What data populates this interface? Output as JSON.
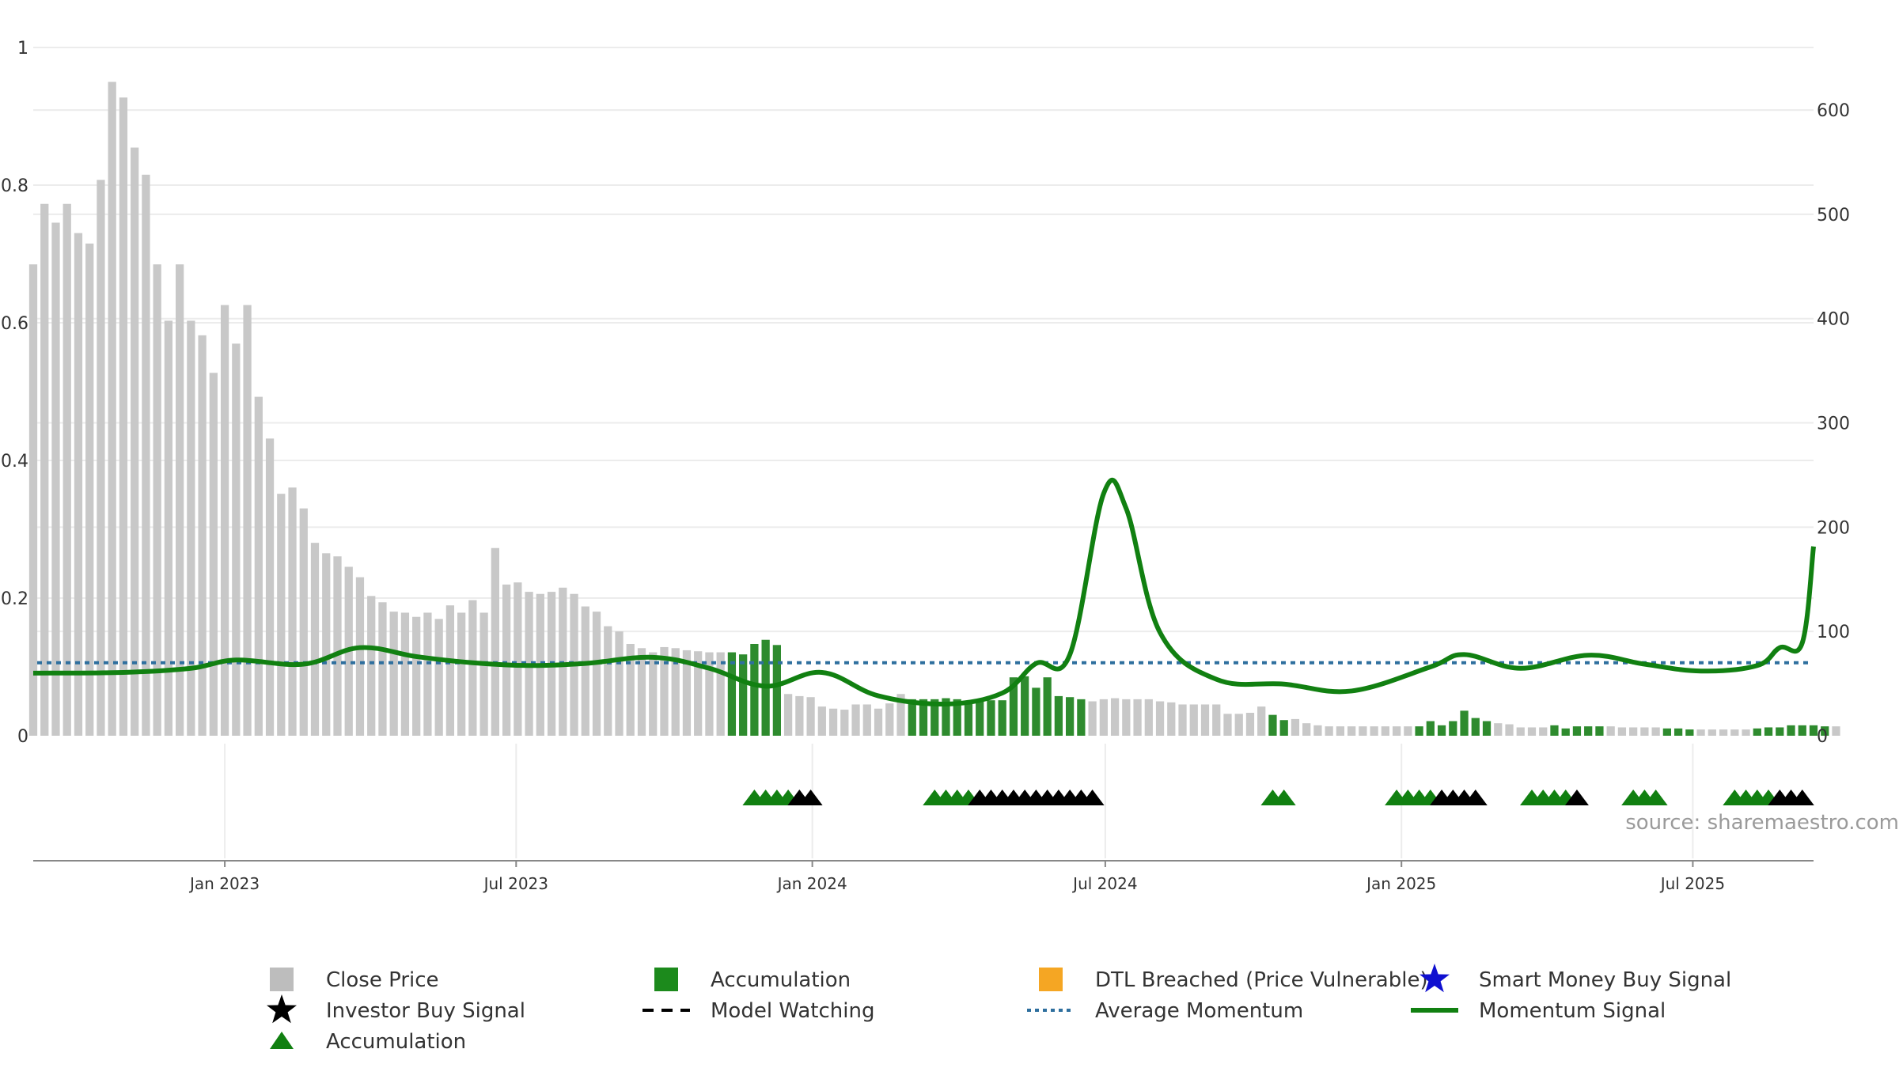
{
  "chart_data": {
    "type": "bar",
    "title": "",
    "xlabel": "",
    "ylabel": "",
    "source": "source: sharemaestro.com",
    "x_range": [
      "2022-09-04",
      "2025-09-14"
    ],
    "x_ticks": [
      {
        "date": "2023-01-01",
        "label": "Jan 2023"
      },
      {
        "date": "2023-07-01",
        "label": "Jul 2023"
      },
      {
        "date": "2024-01-01",
        "label": "Jan 2024"
      },
      {
        "date": "2024-07-01",
        "label": "Jul 2024"
      },
      {
        "date": "2025-01-01",
        "label": "Jan 2025"
      },
      {
        "date": "2025-07-01",
        "label": "Jul 2025"
      }
    ],
    "y_left": {
      "ylim": [
        0,
        1.0
      ],
      "ticks": [
        0,
        0.2,
        0.4,
        0.6,
        0.8,
        1
      ],
      "labels": [
        "0",
        "0.2",
        "0.4",
        "0.6",
        "0.8",
        "1"
      ]
    },
    "y_right": {
      "ylim": [
        0,
        660
      ],
      "ticks": [
        0,
        100,
        200,
        300,
        400,
        500,
        600
      ],
      "labels": [
        "0",
        "100",
        "200",
        "300",
        "400",
        "500",
        "600"
      ]
    },
    "colors": {
      "close": "#c8c8c8",
      "accumulation": "#2e8b2e",
      "momentum": "#118011",
      "average": "#2e6f9e",
      "triangle_green": "#118011",
      "triangle_black": "#000000",
      "dtl": "#f5a623",
      "smart_money": "#1010d0",
      "grid": "#ececec"
    },
    "series": [
      {
        "name": "Close Price",
        "axis": "right",
        "start_date": "2022-09-04",
        "interval_days": 7,
        "values": [
          452,
          510,
          492,
          510,
          482,
          472,
          533,
          627,
          612,
          564,
          538,
          452,
          398,
          452,
          398,
          384,
          348,
          413,
          376,
          413,
          325,
          285,
          232,
          238,
          218,
          185,
          175,
          172,
          162,
          152,
          134,
          128,
          119,
          118,
          114,
          118,
          112,
          125,
          118,
          130,
          118,
          180,
          145,
          147,
          138,
          136,
          138,
          142,
          136,
          124,
          119,
          105,
          100,
          88,
          84,
          80,
          85,
          84,
          82,
          81,
          80,
          80
        ]
      },
      {
        "name": "Accumulation",
        "axis": "right",
        "start_date": "2022-09-04",
        "interval_days": 7,
        "offset": 62,
        "values": [
          80,
          78,
          88,
          92,
          87
        ]
      },
      {
        "name": "Close Price",
        "axis": "right",
        "start_date": "2022-09-04",
        "interval_days": 7,
        "offset": 67,
        "values": [
          40,
          38,
          37,
          28,
          26,
          25,
          30,
          30,
          26,
          31,
          40
        ]
      },
      {
        "name": "Accumulation",
        "axis": "right",
        "start_date": "2022-09-04",
        "interval_days": 7,
        "offset": 78,
        "values": [
          35,
          35,
          35,
          36,
          35,
          33,
          33,
          34,
          34,
          56,
          57,
          46,
          56,
          38,
          37,
          35
        ]
      },
      {
        "name": "Close Price",
        "axis": "right",
        "start_date": "2022-09-04",
        "interval_days": 7,
        "offset": 94,
        "values": [
          33,
          35,
          36,
          35,
          35,
          35,
          33,
          32,
          30,
          30,
          30,
          30,
          21,
          21,
          22,
          28
        ]
      },
      {
        "name": "Accumulation",
        "axis": "right",
        "start_date": "2022-09-04",
        "interval_days": 7,
        "offset": 110,
        "values": [
          20,
          15
        ]
      },
      {
        "name": "Close Price",
        "axis": "right",
        "start_date": "2022-09-04",
        "interval_days": 7,
        "offset": 112,
        "values": [
          16,
          12,
          10,
          9,
          9,
          9,
          9,
          9,
          9,
          9,
          9
        ]
      },
      {
        "name": "Accumulation",
        "axis": "right",
        "start_date": "2022-09-04",
        "interval_days": 7,
        "offset": 123,
        "values": [
          9,
          14,
          10,
          14,
          24,
          17,
          14
        ]
      },
      {
        "name": "Close Price",
        "axis": "right",
        "start_date": "2022-09-04",
        "interval_days": 7,
        "offset": 130,
        "values": [
          12,
          11,
          8,
          8,
          8
        ]
      },
      {
        "name": "Accumulation",
        "axis": "right",
        "start_date": "2022-09-04",
        "interval_days": 7,
        "offset": 135,
        "values": [
          10,
          7,
          9,
          9,
          9
        ]
      },
      {
        "name": "Close Price",
        "axis": "right",
        "start_date": "2022-09-04",
        "interval_days": 7,
        "offset": 140,
        "values": [
          9,
          8,
          8,
          8,
          8
        ]
      },
      {
        "name": "Accumulation",
        "axis": "right",
        "start_date": "2022-09-04",
        "interval_days": 7,
        "offset": 145,
        "values": [
          7,
          7,
          6
        ]
      },
      {
        "name": "Close Price",
        "axis": "right",
        "start_date": "2022-09-04",
        "interval_days": 7,
        "offset": 148,
        "values": [
          6,
          6,
          6,
          6,
          6
        ]
      },
      {
        "name": "Accumulation",
        "axis": "right",
        "start_date": "2022-09-04",
        "interval_days": 7,
        "offset": 153,
        "values": [
          7,
          8,
          8,
          10,
          10,
          10,
          9
        ]
      },
      {
        "name": "Close Price",
        "axis": "right",
        "start_date": "2022-09-04",
        "interval_days": 7,
        "offset": 160,
        "values": [
          9
        ]
      },
      {
        "name": "Momentum Signal",
        "axis": "left",
        "type": "line",
        "points": [
          [
            "2022-09-04",
            0.091
          ],
          [
            "2022-10-30",
            0.092
          ],
          [
            "2022-12-11",
            0.098
          ],
          [
            "2023-01-08",
            0.11
          ],
          [
            "2023-02-19",
            0.104
          ],
          [
            "2023-03-26",
            0.128
          ],
          [
            "2023-04-30",
            0.115
          ],
          [
            "2023-06-04",
            0.106
          ],
          [
            "2023-07-09",
            0.102
          ],
          [
            "2023-08-13",
            0.105
          ],
          [
            "2023-09-24",
            0.114
          ],
          [
            "2023-10-29",
            0.098
          ],
          [
            "2023-12-03",
            0.072
          ],
          [
            "2024-01-07",
            0.092
          ],
          [
            "2024-02-11",
            0.058
          ],
          [
            "2024-03-24",
            0.046
          ],
          [
            "2024-04-28",
            0.062
          ],
          [
            "2024-05-19",
            0.105
          ],
          [
            "2024-06-09",
            0.118
          ],
          [
            "2024-06-30",
            0.352
          ],
          [
            "2024-07-14",
            0.33
          ],
          [
            "2024-08-04",
            0.15
          ],
          [
            "2024-09-08",
            0.082
          ],
          [
            "2024-10-20",
            0.075
          ],
          [
            "2024-12-01",
            0.065
          ],
          [
            "2025-01-19",
            0.1
          ],
          [
            "2025-02-09",
            0.118
          ],
          [
            "2025-03-16",
            0.098
          ],
          [
            "2025-04-27",
            0.117
          ],
          [
            "2025-06-01",
            0.104
          ],
          [
            "2025-07-06",
            0.094
          ],
          [
            "2025-08-10",
            0.102
          ],
          [
            "2025-08-24",
            0.128
          ],
          [
            "2025-09-07",
            0.135
          ],
          [
            "2025-09-14",
            0.275
          ]
        ]
      },
      {
        "name": "Average Momentum",
        "axis": "left",
        "type": "hline",
        "value": 0.106
      }
    ],
    "markers": {
      "accumulation_triangles": [
        "2023-11-26",
        "2023-12-03",
        "2023-12-10",
        "2023-12-17",
        "2024-03-17",
        "2024-03-24",
        "2024-03-31",
        "2024-04-07",
        "2024-10-13",
        "2024-10-20",
        "2024-12-29",
        "2025-01-05",
        "2025-01-12",
        "2025-01-19",
        "2025-03-23",
        "2025-03-30",
        "2025-04-06",
        "2025-04-13",
        "2025-05-25",
        "2025-06-01",
        "2025-06-08",
        "2025-07-27",
        "2025-08-03",
        "2025-08-10",
        "2025-08-17"
      ],
      "investor_buy_triangles": [
        "2023-12-24",
        "2023-12-31",
        "2024-04-14",
        "2024-04-21",
        "2024-04-28",
        "2024-05-05",
        "2024-05-12",
        "2024-05-19",
        "2024-05-26",
        "2024-06-02",
        "2024-06-09",
        "2024-06-16",
        "2024-06-23",
        "2025-01-26",
        "2025-02-02",
        "2025-02-09",
        "2025-02-16",
        "2025-04-20",
        "2025-08-24",
        "2025-08-31",
        "2025-09-07"
      ]
    },
    "legend": {
      "placement": "bottom",
      "entries": [
        {
          "label": "Close Price",
          "symbol": "gray-square"
        },
        {
          "label": "Accumulation",
          "symbol": "green-square"
        },
        {
          "label": "DTL Breached (Price Vulnerable)",
          "symbol": "orange-square"
        },
        {
          "label": "Smart Money Buy Signal",
          "symbol": "blue-star"
        },
        {
          "label": "Investor Buy Signal",
          "symbol": "black-star"
        },
        {
          "label": "Model Watching",
          "symbol": "black-dash"
        },
        {
          "label": "Average Momentum",
          "symbol": "blue-dotted"
        },
        {
          "label": "Momentum Signal",
          "symbol": "green-line"
        },
        {
          "label": "Accumulation",
          "symbol": "green-triangle"
        }
      ]
    }
  }
}
